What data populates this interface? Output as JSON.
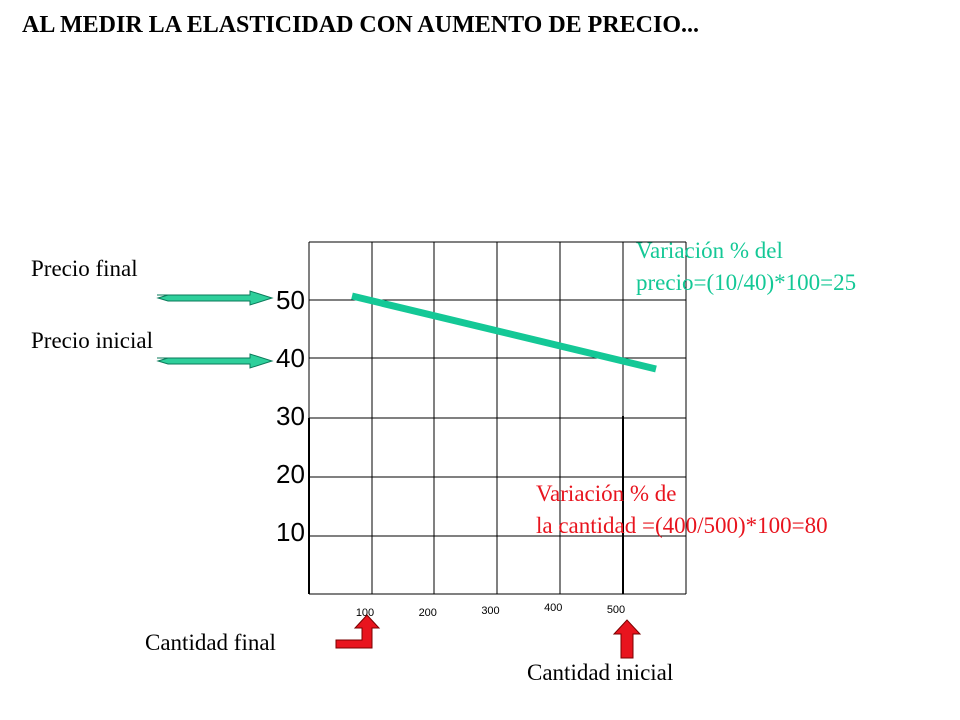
{
  "title": "AL MEDIR LA ELASTICIDAD CON AUMENTO DE PRECIO...",
  "labels": {
    "precio_final": "Precio final",
    "precio_inicial": "Precio inicial",
    "cantidad_final": "Cantidad final",
    "cantidad_inicial": "Cantidad inicial"
  },
  "annotations": {
    "precio": "Variación % del\nprecio=(10/40)*100=25",
    "cantidad": "Variación % de\nla cantidad =(400/500)*100=80"
  },
  "colors": {
    "curve": "#14c896",
    "price_arrow": "#2ecf9b",
    "price_note": "#14c896",
    "quantity_note": "#e8141e",
    "quantity_arrow": "#e8141e",
    "grid": "#000000"
  },
  "chart_data": {
    "type": "line",
    "title": "",
    "xlabel": "",
    "ylabel": "",
    "x_ticks": [
      "100",
      "200",
      "300",
      "400",
      "500"
    ],
    "y_ticks": [
      "10",
      "20",
      "30",
      "40",
      "50"
    ],
    "grid": true,
    "series": [
      {
        "x": [
          100,
          500
        ],
        "y": [
          50,
          40
        ]
      }
    ],
    "reference_lines": [
      {
        "axis": "x",
        "value": 500,
        "from_y": 0,
        "to_y": 30
      }
    ]
  }
}
